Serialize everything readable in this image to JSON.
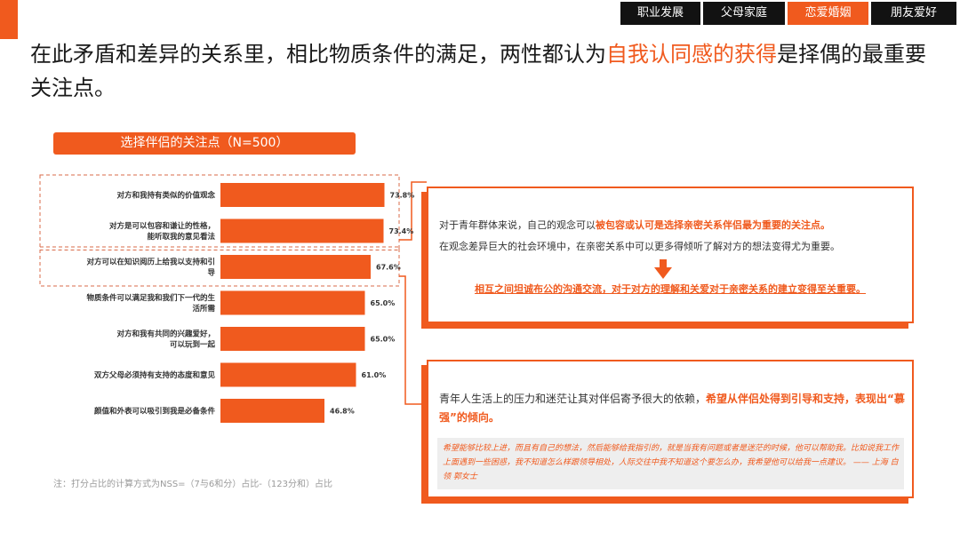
{
  "nav": {
    "tabs": [
      {
        "label": "职业发展"
      },
      {
        "label": "父母家庭"
      },
      {
        "label": "恋爱婚姻"
      },
      {
        "label": "朋友爱好"
      }
    ],
    "active_index": 2
  },
  "headline": {
    "part1": "在此矛盾和差异的关系里，相比物质条件的满足，两性都认为",
    "highlight": "自我认同感的获得",
    "part2": "是择偶的最重要关注点。"
  },
  "chart_data": {
    "type": "bar",
    "orientation": "horizontal",
    "title": "选择伴侣的关注点（N=500）",
    "categories": [
      "对方和我持有类似的价值观念",
      "对方是可以包容和谦让的性格，能听取我的意见看法",
      "对方可以在知识阅历上给我以支持和引导",
      "物质条件可以满足我和我们下一代的生活所需",
      "对方和我有共同的兴趣爱好，可以玩到一起",
      "双方父母必须持有支持的态度和意见",
      "颜值和外表可以吸引到我是必备条件"
    ],
    "values": [
      73.8,
      73.4,
      67.6,
      65.0,
      65.0,
      61.0,
      46.8
    ],
    "value_labels": [
      "73.8%",
      "73.4%",
      "67.6%",
      "65.0%",
      "65.0%",
      "61.0%",
      "46.8%"
    ],
    "xlim": [
      0,
      100
    ],
    "bar_color": "#f05a1e",
    "highlighted_groups": [
      [
        0,
        1
      ],
      [
        2
      ]
    ]
  },
  "note": "注：打分占比的计算方式为NSS=（7与6和分）占比-（123分和）占比",
  "callout1": {
    "line1_pre": "对于青年群体来说，自己的观念可以",
    "line1_bold": "被包容或认可是选择亲密关系伴侣最为重要的关注点。",
    "line2": "在观念差异巨大的社会环境中，在亲密关系中可以更多得倾听了解对方的想法变得尤为重要。",
    "conclusion": "相互之间坦诚布公的沟通交流，对于对方的理解和关爱对于亲密关系的建立变得至关重要。"
  },
  "callout2": {
    "text_pre": "青年人生活上的压力和迷茫让其对伴侣寄予很大的依赖，",
    "text_bold": "希望从伴侣处得到引导和支持，表现出“慕强”的倾向。",
    "quote": "希望能够比较上进，而且有自己的想法，然后能够给我指引的，就是当我有问题或者是迷茫的时候，他可以帮助我。比如说我工作上面遇到一些困惑，我不知道怎么样跟领导相处，人际交往中我不知道这个要怎么办，我希望他可以给我一点建议。 —— 上海 白领  郭女士"
  },
  "colors": {
    "accent": "#f05a1e",
    "nav_dark": "#121212",
    "note_gray": "#9a9a9a"
  }
}
